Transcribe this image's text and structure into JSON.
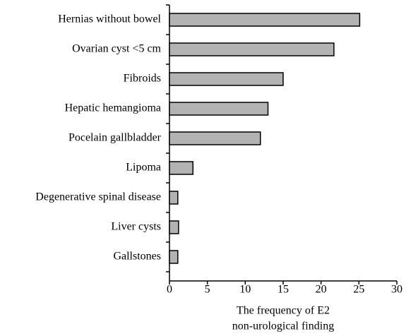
{
  "chart_data": {
    "type": "bar",
    "orientation": "horizontal",
    "categories": [
      "Hernias without bowel",
      "Ovarian cyst <5 cm",
      "Fibroids",
      "Hepatic hemangioma",
      "Pocelain gallbladder",
      "Lipoma",
      "Degenerative spinal disease",
      "Liver cysts",
      "Gallstones"
    ],
    "values": [
      25.1,
      21.7,
      15,
      13,
      12,
      3.1,
      1.1,
      1.2,
      1.1
    ],
    "color": "#b3b3b3",
    "xlim": [
      0,
      30
    ],
    "xticks": [
      0,
      5,
      10,
      15,
      20,
      25,
      30
    ],
    "xlabel": [
      "The frequency of E2",
      "non-urological finding"
    ]
  }
}
